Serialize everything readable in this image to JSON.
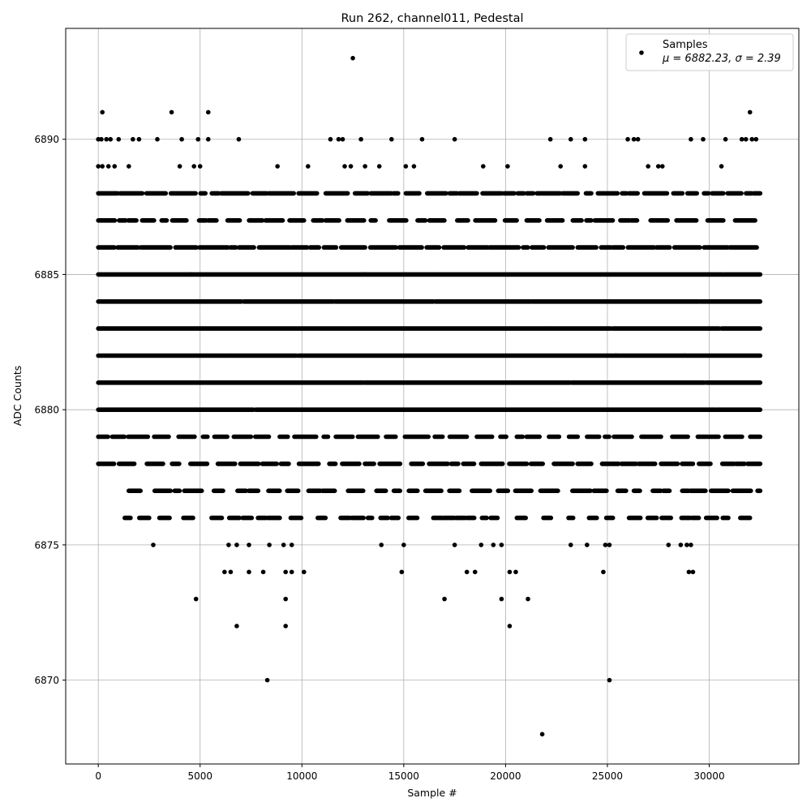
{
  "chart_data": {
    "type": "scatter",
    "title": "Run 262, channel011, Pedestal",
    "xlabel": "Sample #",
    "ylabel": "ADC Counts",
    "xlim": [
      -1600,
      34400
    ],
    "ylim": [
      6866.9,
      6894.1
    ],
    "xticks": [
      0,
      5000,
      10000,
      15000,
      20000,
      25000,
      30000
    ],
    "yticks": [
      6870,
      6875,
      6880,
      6885,
      6890
    ],
    "grid": true,
    "legend": {
      "placement": "top-right",
      "series_label": "Samples",
      "stats_label": "μ = 6882.23, σ = 2.39"
    },
    "marker_color": "#000000",
    "dense_levels": [
      {
        "y": 6878,
        "x_start": 0,
        "x_end": 32500,
        "density": 0.55
      },
      {
        "y": 6879,
        "x_start": 0,
        "x_end": 32500,
        "density": 0.6
      },
      {
        "y": 6880,
        "x_start": 0,
        "x_end": 32500,
        "density": 0.95
      },
      {
        "y": 6881,
        "x_start": 0,
        "x_end": 32500,
        "density": 1.0
      },
      {
        "y": 6882,
        "x_start": 0,
        "x_end": 32500,
        "density": 1.0
      },
      {
        "y": 6883,
        "x_start": 0,
        "x_end": 32500,
        "density": 0.95
      },
      {
        "y": 6884,
        "x_start": 0,
        "x_end": 32500,
        "density": 1.0
      },
      {
        "y": 6885,
        "x_start": 0,
        "x_end": 32500,
        "density": 0.95
      },
      {
        "y": 6886,
        "x_start": 0,
        "x_end": 32500,
        "density": 0.85
      },
      {
        "y": 6887,
        "x_start": 0,
        "x_end": 32500,
        "density": 0.5
      },
      {
        "y": 6888,
        "x_start": 0,
        "x_end": 32500,
        "density": 0.7
      },
      {
        "y": 6877,
        "x_start": 1500,
        "x_end": 32500,
        "density": 0.45
      },
      {
        "y": 6876,
        "x_start": 1300,
        "x_end": 32000,
        "density": 0.25
      }
    ],
    "points": [
      {
        "x": 12500,
        "y": 6893
      },
      {
        "x": 200,
        "y": 6891
      },
      {
        "x": 3600,
        "y": 6891
      },
      {
        "x": 5400,
        "y": 6891
      },
      {
        "x": 32000,
        "y": 6891
      },
      {
        "x": 0,
        "y": 6890
      },
      {
        "x": 150,
        "y": 6890
      },
      {
        "x": 400,
        "y": 6890
      },
      {
        "x": 600,
        "y": 6890
      },
      {
        "x": 1000,
        "y": 6890
      },
      {
        "x": 1700,
        "y": 6890
      },
      {
        "x": 2000,
        "y": 6890
      },
      {
        "x": 2900,
        "y": 6890
      },
      {
        "x": 4100,
        "y": 6890
      },
      {
        "x": 4900,
        "y": 6890
      },
      {
        "x": 5400,
        "y": 6890
      },
      {
        "x": 6900,
        "y": 6890
      },
      {
        "x": 11400,
        "y": 6890
      },
      {
        "x": 11800,
        "y": 6890
      },
      {
        "x": 12000,
        "y": 6890
      },
      {
        "x": 12900,
        "y": 6890
      },
      {
        "x": 14400,
        "y": 6890
      },
      {
        "x": 15900,
        "y": 6890
      },
      {
        "x": 17500,
        "y": 6890
      },
      {
        "x": 22200,
        "y": 6890
      },
      {
        "x": 23200,
        "y": 6890
      },
      {
        "x": 23900,
        "y": 6890
      },
      {
        "x": 26000,
        "y": 6890
      },
      {
        "x": 26300,
        "y": 6890
      },
      {
        "x": 26500,
        "y": 6890
      },
      {
        "x": 29100,
        "y": 6890
      },
      {
        "x": 29700,
        "y": 6890
      },
      {
        "x": 30800,
        "y": 6890
      },
      {
        "x": 31600,
        "y": 6890
      },
      {
        "x": 31800,
        "y": 6890
      },
      {
        "x": 32100,
        "y": 6890
      },
      {
        "x": 32300,
        "y": 6890
      },
      {
        "x": 0,
        "y": 6889
      },
      {
        "x": 200,
        "y": 6889
      },
      {
        "x": 500,
        "y": 6889
      },
      {
        "x": 800,
        "y": 6889
      },
      {
        "x": 1500,
        "y": 6889
      },
      {
        "x": 4000,
        "y": 6889
      },
      {
        "x": 4700,
        "y": 6889
      },
      {
        "x": 5000,
        "y": 6889
      },
      {
        "x": 8800,
        "y": 6889
      },
      {
        "x": 10300,
        "y": 6889
      },
      {
        "x": 12100,
        "y": 6889
      },
      {
        "x": 12400,
        "y": 6889
      },
      {
        "x": 13100,
        "y": 6889
      },
      {
        "x": 13800,
        "y": 6889
      },
      {
        "x": 15100,
        "y": 6889
      },
      {
        "x": 15500,
        "y": 6889
      },
      {
        "x": 18900,
        "y": 6889
      },
      {
        "x": 20100,
        "y": 6889
      },
      {
        "x": 22700,
        "y": 6889
      },
      {
        "x": 23900,
        "y": 6889
      },
      {
        "x": 27000,
        "y": 6889
      },
      {
        "x": 27500,
        "y": 6889
      },
      {
        "x": 27700,
        "y": 6889
      },
      {
        "x": 30600,
        "y": 6889
      },
      {
        "x": 2700,
        "y": 6875
      },
      {
        "x": 6400,
        "y": 6875
      },
      {
        "x": 6800,
        "y": 6875
      },
      {
        "x": 7400,
        "y": 6875
      },
      {
        "x": 8400,
        "y": 6875
      },
      {
        "x": 9100,
        "y": 6875
      },
      {
        "x": 9500,
        "y": 6875
      },
      {
        "x": 13900,
        "y": 6875
      },
      {
        "x": 15000,
        "y": 6875
      },
      {
        "x": 17500,
        "y": 6875
      },
      {
        "x": 18800,
        "y": 6875
      },
      {
        "x": 19400,
        "y": 6875
      },
      {
        "x": 19800,
        "y": 6875
      },
      {
        "x": 23200,
        "y": 6875
      },
      {
        "x": 24000,
        "y": 6875
      },
      {
        "x": 24900,
        "y": 6875
      },
      {
        "x": 25100,
        "y": 6875
      },
      {
        "x": 28000,
        "y": 6875
      },
      {
        "x": 28600,
        "y": 6875
      },
      {
        "x": 28900,
        "y": 6875
      },
      {
        "x": 29100,
        "y": 6875
      },
      {
        "x": 6200,
        "y": 6874
      },
      {
        "x": 6500,
        "y": 6874
      },
      {
        "x": 7400,
        "y": 6874
      },
      {
        "x": 8100,
        "y": 6874
      },
      {
        "x": 9200,
        "y": 6874
      },
      {
        "x": 9500,
        "y": 6874
      },
      {
        "x": 10100,
        "y": 6874
      },
      {
        "x": 14900,
        "y": 6874
      },
      {
        "x": 18100,
        "y": 6874
      },
      {
        "x": 18500,
        "y": 6874
      },
      {
        "x": 20200,
        "y": 6874
      },
      {
        "x": 20500,
        "y": 6874
      },
      {
        "x": 24800,
        "y": 6874
      },
      {
        "x": 29000,
        "y": 6874
      },
      {
        "x": 29200,
        "y": 6874
      },
      {
        "x": 4800,
        "y": 6873
      },
      {
        "x": 9200,
        "y": 6873
      },
      {
        "x": 17000,
        "y": 6873
      },
      {
        "x": 19800,
        "y": 6873
      },
      {
        "x": 21100,
        "y": 6873
      },
      {
        "x": 6800,
        "y": 6872
      },
      {
        "x": 9200,
        "y": 6872
      },
      {
        "x": 20200,
        "y": 6872
      },
      {
        "x": 8300,
        "y": 6870
      },
      {
        "x": 25100,
        "y": 6870
      },
      {
        "x": 21800,
        "y": 6868
      }
    ]
  }
}
